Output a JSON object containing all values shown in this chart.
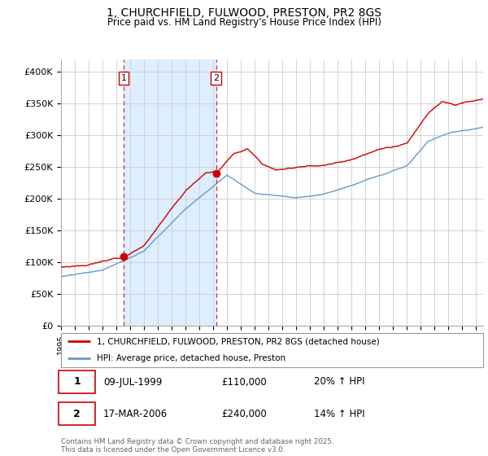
{
  "title": "1, CHURCHFIELD, FULWOOD, PRESTON, PR2 8GS",
  "subtitle": "Price paid vs. HM Land Registry's House Price Index (HPI)",
  "legend_line1": "1, CHURCHFIELD, FULWOOD, PRESTON, PR2 8GS (detached house)",
  "legend_line2": "HPI: Average price, detached house, Preston",
  "footer": "Contains HM Land Registry data © Crown copyright and database right 2025.\nThis data is licensed under the Open Government Licence v3.0.",
  "sale1_label": "1",
  "sale1_date": "09-JUL-1999",
  "sale1_price": "£110,000",
  "sale1_hpi": "20% ↑ HPI",
  "sale2_label": "2",
  "sale2_date": "17-MAR-2006",
  "sale2_price": "£240,000",
  "sale2_hpi": "14% ↑ HPI",
  "line_color_property": "#cc0000",
  "line_color_hpi": "#6699cc",
  "shade_color": "#ddeeff",
  "background_color": "#ffffff",
  "grid_color": "#cccccc",
  "ylim": [
    0,
    420000
  ],
  "yticks": [
    0,
    50000,
    100000,
    150000,
    200000,
    250000,
    300000,
    350000,
    400000
  ],
  "sale1_x": 1999.52,
  "sale1_y": 110000,
  "sale2_x": 2006.21,
  "sale2_y": 240000,
  "xmin": 1995,
  "xmax": 2025.5
}
